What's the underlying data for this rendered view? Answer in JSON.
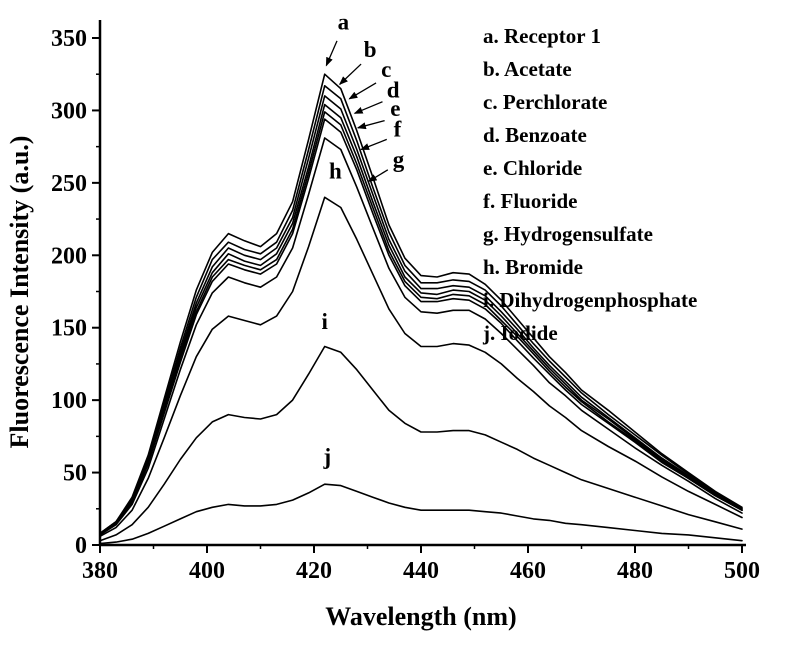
{
  "chart_data": {
    "type": "line",
    "title": "",
    "xlabel": "Wavelength (nm)",
    "ylabel": "Fluorescence Intensity (a.u.)",
    "xlim": [
      380,
      500
    ],
    "ylim": [
      0,
      350
    ],
    "x_ticks": [
      380,
      400,
      420,
      440,
      460,
      480,
      500
    ],
    "x_minor_ticks": [
      390,
      410,
      430,
      450,
      470,
      490
    ],
    "y_ticks": [
      0,
      50,
      100,
      150,
      200,
      250,
      300,
      350
    ],
    "y_minor_ticks": [
      25,
      75,
      125,
      175,
      225,
      275,
      325
    ],
    "grid": false,
    "legend_position": "upper right",
    "line_color": "#000000",
    "x": [
      380,
      383,
      386,
      389,
      392,
      395,
      398,
      401,
      404,
      407,
      410,
      413,
      416,
      419,
      422,
      425,
      428,
      431,
      434,
      437,
      440,
      443,
      446,
      449,
      452,
      455,
      458,
      461,
      464,
      467,
      470,
      475,
      480,
      485,
      490,
      495,
      500
    ],
    "series": [
      {
        "name": "a",
        "label": "a. Receptor 1",
        "values": [
          8,
          16,
          33,
          62,
          101,
          140,
          176,
          202,
          215,
          210,
          206,
          215,
          237,
          280,
          325,
          315,
          286,
          254,
          221,
          198,
          186,
          185,
          188,
          187,
          180,
          169,
          156,
          143,
          130,
          119,
          107,
          93,
          78,
          63,
          50,
          37,
          26
        ]
      },
      {
        "name": "b",
        "label": "b. Acetate",
        "values": [
          8,
          16,
          32,
          60,
          98,
          136,
          171,
          197,
          209,
          204,
          201,
          209,
          231,
          273,
          317,
          308,
          279,
          247,
          216,
          193,
          181,
          181,
          183,
          182,
          176,
          165,
          152,
          139,
          127,
          116,
          105,
          90,
          76,
          62,
          49,
          36,
          25
        ]
      },
      {
        "name": "c",
        "label": "c. Perchlorate",
        "values": [
          8,
          16,
          31,
          59,
          96,
          133,
          167,
          192,
          205,
          200,
          197,
          205,
          226,
          267,
          310,
          301,
          273,
          242,
          211,
          189,
          177,
          177,
          179,
          178,
          172,
          161,
          149,
          136,
          124,
          113,
          102,
          88,
          74,
          60,
          48,
          36,
          25
        ]
      },
      {
        "name": "d",
        "label": "d. Benzoate",
        "values": [
          8,
          15,
          30,
          58,
          94,
          131,
          164,
          188,
          201,
          196,
          193,
          201,
          222,
          261,
          304,
          295,
          268,
          237,
          207,
          185,
          174,
          173,
          176,
          175,
          169,
          158,
          146,
          134,
          122,
          111,
          100,
          87,
          73,
          59,
          47,
          35,
          24
        ]
      },
      {
        "name": "e",
        "label": "e. Chloride",
        "values": [
          7,
          15,
          30,
          57,
          93,
          129,
          161,
          185,
          197,
          193,
          190,
          197,
          218,
          257,
          299,
          290,
          263,
          233,
          203,
          182,
          171,
          170,
          173,
          172,
          166,
          155,
          144,
          132,
          120,
          109,
          99,
          85,
          72,
          58,
          46,
          34,
          24
        ]
      },
      {
        "name": "f",
        "label": "f. Fluoride",
        "values": [
          7,
          15,
          29,
          56,
          91,
          126,
          159,
          182,
          194,
          190,
          187,
          194,
          215,
          253,
          294,
          285,
          259,
          229,
          200,
          179,
          168,
          168,
          170,
          169,
          163,
          153,
          141,
          129,
          118,
          107,
          97,
          84,
          71,
          57,
          46,
          34,
          24
        ]
      },
      {
        "name": "g",
        "label": "g. Hydrogensulfate",
        "values": [
          7,
          14,
          28,
          53,
          87,
          121,
          152,
          174,
          185,
          181,
          178,
          185,
          205,
          242,
          281,
          273,
          247,
          219,
          191,
          171,
          161,
          160,
          162,
          162,
          156,
          146,
          135,
          124,
          112,
          103,
          93,
          80,
          67,
          55,
          44,
          32,
          22
        ]
      },
      {
        "name": "h",
        "label": "h. Bromide",
        "values": [
          6,
          12,
          24,
          46,
          74,
          103,
          130,
          149,
          158,
          155,
          152,
          158,
          175,
          206,
          240,
          233,
          211,
          187,
          163,
          146,
          137,
          137,
          139,
          138,
          133,
          125,
          115,
          106,
          96,
          88,
          79,
          68,
          58,
          47,
          37,
          28,
          19
        ]
      },
      {
        "name": "i",
        "label": "i. Dihydrogenphosphate",
        "values": [
          3,
          7,
          14,
          26,
          42,
          59,
          74,
          85,
          90,
          88,
          87,
          90,
          100,
          118,
          137,
          133,
          121,
          107,
          93,
          84,
          78,
          78,
          79,
          79,
          76,
          71,
          66,
          60,
          55,
          50,
          45,
          39,
          33,
          27,
          21,
          16,
          11
        ]
      },
      {
        "name": "j",
        "label": "j. Iodide",
        "values": [
          1,
          2,
          4,
          8,
          13,
          18,
          23,
          26,
          28,
          27,
          27,
          28,
          31,
          36,
          42,
          41,
          37,
          33,
          29,
          26,
          24,
          24,
          24,
          24,
          23,
          22,
          20,
          18,
          17,
          15,
          14,
          12,
          10,
          8,
          7,
          5,
          3
        ]
      }
    ],
    "annotations": [
      {
        "text": "a",
        "x": 425.5,
        "y": 356,
        "arrow": {
          "x1": 424.3,
          "y1": 348,
          "x2": 422.3,
          "y2": 331
        }
      },
      {
        "text": "b",
        "x": 430.5,
        "y": 337,
        "arrow": {
          "x1": 428.8,
          "y1": 332,
          "x2": 424.8,
          "y2": 318
        }
      },
      {
        "text": "c",
        "x": 433.5,
        "y": 323,
        "arrow": {
          "x1": 431.6,
          "y1": 319,
          "x2": 426.6,
          "y2": 308
        }
      },
      {
        "text": "d",
        "x": 434.8,
        "y": 309,
        "arrow": {
          "x1": 432.8,
          "y1": 306,
          "x2": 427.6,
          "y2": 298
        }
      },
      {
        "text": "e",
        "x": 435.2,
        "y": 296,
        "arrow": {
          "x1": 433.2,
          "y1": 293,
          "x2": 428.2,
          "y2": 288
        }
      },
      {
        "text": "f",
        "x": 435.6,
        "y": 282,
        "arrow": {
          "x1": 433.6,
          "y1": 280,
          "x2": 428.8,
          "y2": 273
        }
      },
      {
        "text": "g",
        "x": 435.8,
        "y": 261,
        "arrow": {
          "x1": 433.8,
          "y1": 259,
          "x2": 430.2,
          "y2": 251
        }
      },
      {
        "text": "h",
        "x": 424.0,
        "y": 253
      },
      {
        "text": "i",
        "x": 422.0,
        "y": 149
      },
      {
        "text": "j",
        "x": 422.5,
        "y": 56
      }
    ],
    "legend": [
      "a. Receptor 1",
      "b. Acetate",
      "c. Perchlorate",
      "d. Benzoate",
      "e. Chloride",
      "f. Fluoride",
      "g. Hydrogensulfate",
      "h. Bromide",
      "i. Dihydrogenphosphate",
      "j. Iodide"
    ]
  }
}
